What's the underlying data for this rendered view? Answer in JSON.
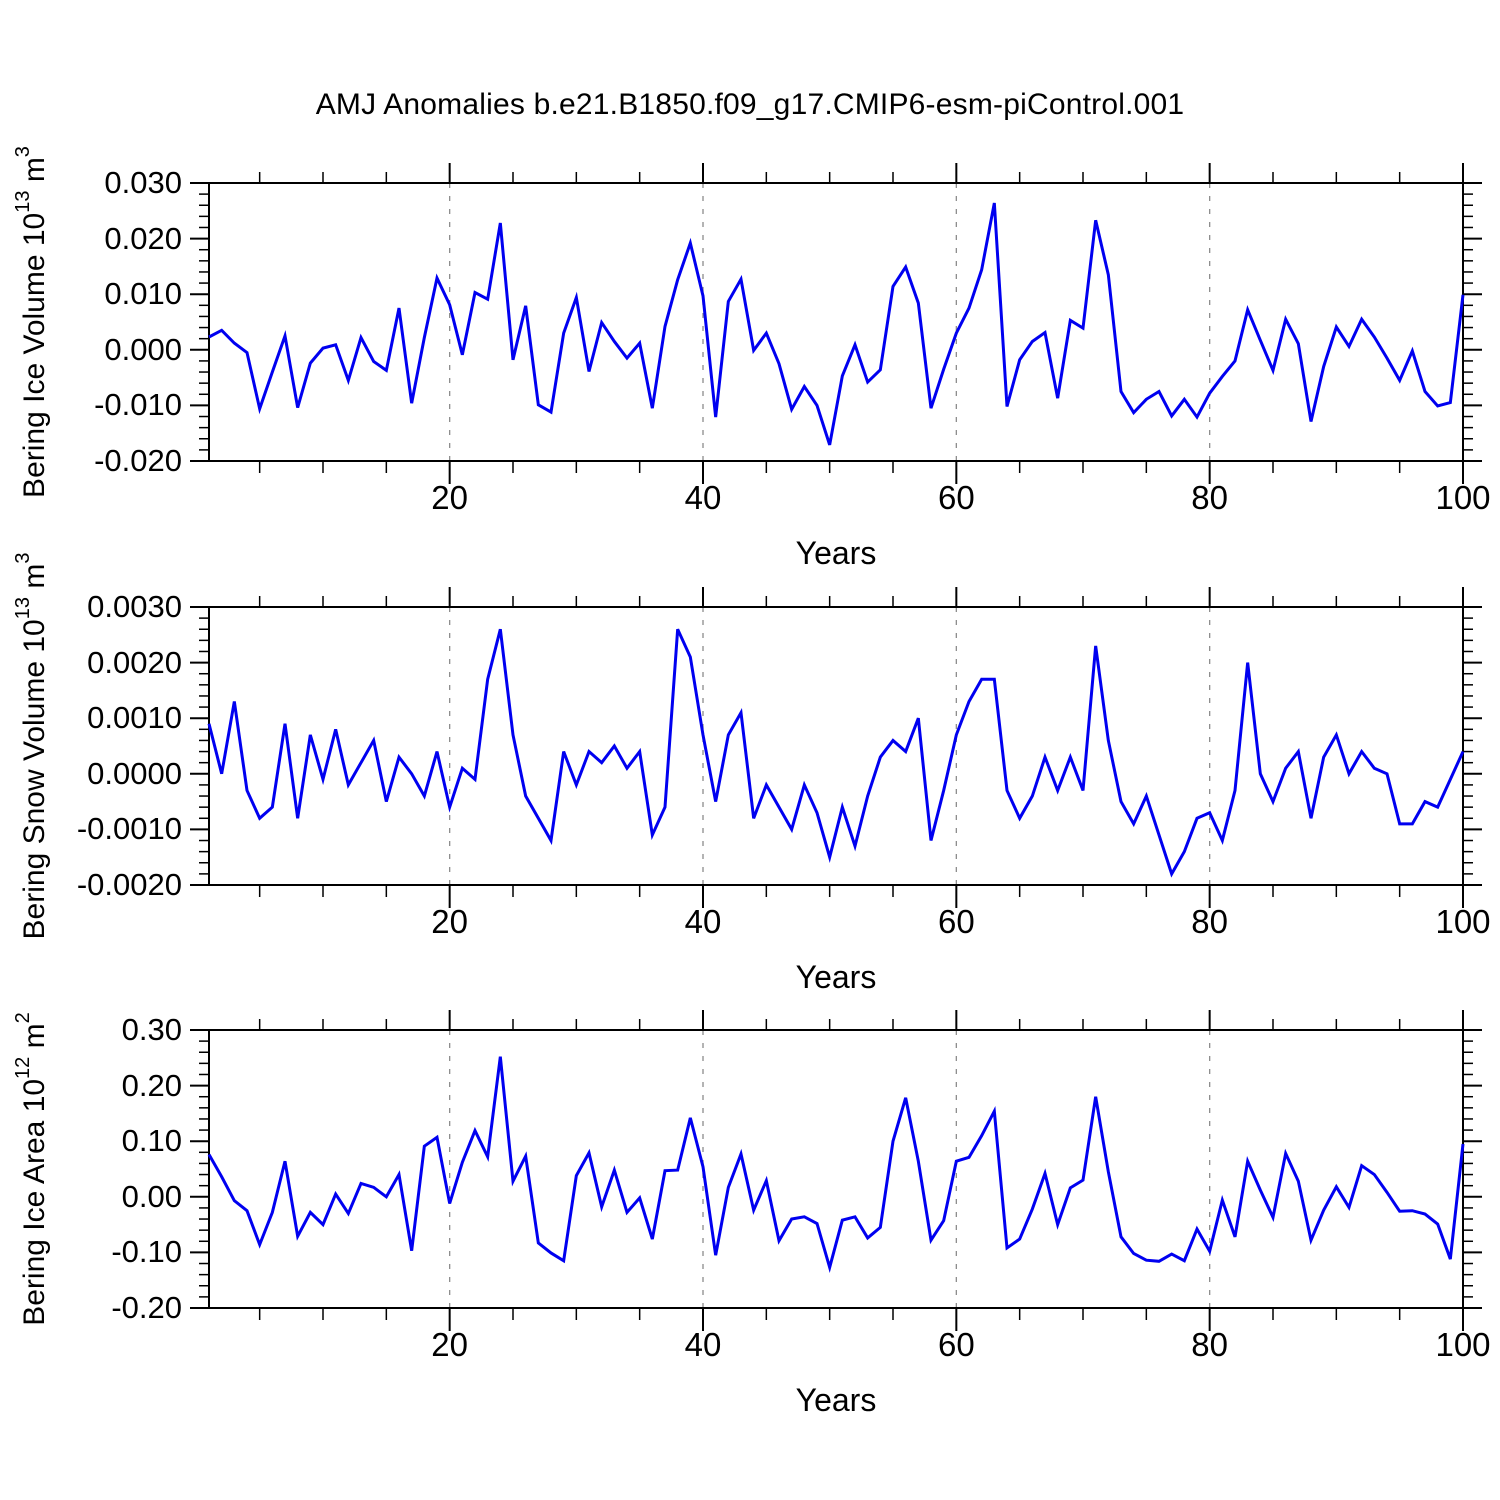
{
  "title": "AMJ Anomalies b.e21.B1850.f09_g17.CMIP6-esm-piControl.001",
  "colors": {
    "line": "#0000f0",
    "axis": "#000000",
    "grid": "#8c8c8c",
    "background": "#ffffff",
    "text": "#000000"
  },
  "x_axis": {
    "label": "Years",
    "range": [
      1,
      100
    ],
    "major_ticks": [
      20,
      40,
      60,
      80,
      100
    ],
    "major_tick_labels": [
      "20",
      "40",
      "60",
      "80",
      "100"
    ],
    "minor_tick_step": 5,
    "gridlines_at": [
      20,
      40,
      60,
      80
    ],
    "grid_style": "dashed"
  },
  "chart_data": [
    {
      "type": "line",
      "name": "bering-ice-volume",
      "ylabel_plain": "Bering Ice Volume 10^13 m^3",
      "ylabel_segments": [
        {
          "text": "Bering Ice Volume 10"
        },
        {
          "text": "13",
          "sup": true
        },
        {
          "text": " m"
        },
        {
          "text": "3",
          "sup": true
        }
      ],
      "xlabel": "Years",
      "ylim": [
        -0.02,
        0.03
      ],
      "ytick_labels": [
        "0.030",
        "0.020",
        "0.010",
        "0.000",
        "-0.010",
        "-0.020"
      ],
      "ytick_values": [
        0.03,
        0.02,
        0.01,
        0.0,
        -0.01,
        -0.02
      ],
      "yminor_step": 0.002,
      "x_years": {
        "start": 1,
        "end": 100,
        "step": 1
      },
      "values": [
        0.0023,
        0.0035,
        0.0012,
        -0.0005,
        -0.0106,
        -0.004,
        0.0025,
        -0.0104,
        -0.0024,
        0.0003,
        0.0009,
        -0.0055,
        0.0022,
        -0.0021,
        -0.0037,
        0.0075,
        -0.0096,
        0.0022,
        0.0129,
        0.0081,
        -0.0009,
        0.0103,
        0.0091,
        0.0228,
        -0.0018,
        0.0079,
        -0.0099,
        -0.0112,
        0.003,
        0.0094,
        -0.0039,
        0.0049,
        0.0015,
        -0.0015,
        0.0012,
        -0.0105,
        0.0042,
        0.0126,
        0.0192,
        0.0097,
        -0.0121,
        0.0087,
        0.0127,
        -0.0001,
        0.003,
        -0.0025,
        -0.0107,
        -0.0066,
        -0.01,
        -0.0171,
        -0.0047,
        0.0009,
        -0.0058,
        -0.0036,
        0.0114,
        0.0149,
        0.0084,
        -0.0105,
        -0.0035,
        0.003,
        0.0075,
        0.0144,
        0.0264,
        -0.0102,
        -0.0018,
        0.0015,
        0.0031,
        -0.0087,
        0.0053,
        0.0039,
        0.0233,
        0.0135,
        -0.0075,
        -0.0113,
        -0.0089,
        -0.0075,
        -0.0119,
        -0.0089,
        -0.0121,
        -0.0078,
        -0.0048,
        -0.002,
        0.0072,
        0.0017,
        -0.0037,
        0.0055,
        0.0011,
        -0.0129,
        -0.003,
        0.0041,
        0.0006,
        0.0055,
        0.0023,
        -0.0015,
        -0.0055,
        -0.0002,
        -0.0075,
        -0.0101,
        -0.0095,
        0.0099
      ]
    },
    {
      "type": "line",
      "name": "bering-snow-volume",
      "ylabel_plain": "Bering Snow Volume 10^13 m^3",
      "ylabel_segments": [
        {
          "text": "Bering Snow Volume 10"
        },
        {
          "text": "13",
          "sup": true
        },
        {
          "text": " m"
        },
        {
          "text": "3",
          "sup": true
        }
      ],
      "xlabel": "Years",
      "ylim": [
        -0.002,
        0.003
      ],
      "ytick_labels": [
        "0.0030",
        "0.0020",
        "0.0010",
        "0.0000",
        "-0.0010",
        "-0.0020"
      ],
      "ytick_values": [
        0.003,
        0.002,
        0.001,
        0.0,
        -0.001,
        -0.002
      ],
      "yminor_step": 0.0002,
      "x_years": {
        "start": 1,
        "end": 100,
        "step": 1
      },
      "values": [
        0.0009,
        0.0,
        0.0013,
        -0.0003,
        -0.0008,
        -0.0006,
        0.0009,
        -0.0008,
        0.0007,
        -0.0001,
        0.0008,
        -0.0002,
        0.0002,
        0.0006,
        -0.0005,
        0.0003,
        0.0,
        -0.0004,
        0.0004,
        -0.0006,
        0.0001,
        -0.0001,
        0.0017,
        0.0026,
        0.0007,
        -0.0004,
        -0.0008,
        -0.0012,
        0.0004,
        -0.0002,
        0.0004,
        0.0002,
        0.0005,
        0.0001,
        0.0004,
        -0.0011,
        -0.0006,
        0.0026,
        0.0021,
        0.0007,
        -0.0005,
        0.0007,
        0.0011,
        -0.0008,
        -0.0002,
        -0.0006,
        -0.001,
        -0.0002,
        -0.0007,
        -0.0015,
        -0.0006,
        -0.0013,
        -0.0004,
        0.0003,
        0.0006,
        0.0004,
        0.001,
        -0.0012,
        -0.0003,
        0.0007,
        0.0013,
        0.0017,
        0.0017,
        -0.0003,
        -0.0008,
        -0.0004,
        0.0003,
        -0.0003,
        0.0003,
        -0.0003,
        0.0023,
        0.0006,
        -0.0005,
        -0.0009,
        -0.0004,
        -0.0011,
        -0.0018,
        -0.0014,
        -0.0008,
        -0.0007,
        -0.0012,
        -0.0003,
        0.002,
        0.0,
        -0.0005,
        0.0001,
        0.0004,
        -0.0008,
        0.0003,
        0.0007,
        0.0,
        0.0004,
        0.0001,
        0.0,
        -0.0009,
        -0.0009,
        -0.0005,
        -0.0006,
        -0.0001,
        0.0004
      ]
    },
    {
      "type": "line",
      "name": "bering-ice-area",
      "ylabel_plain": "Bering Ice Area 10^12 m^2",
      "ylabel_segments": [
        {
          "text": "Bering Ice Area 10"
        },
        {
          "text": "12",
          "sup": true
        },
        {
          "text": " m"
        },
        {
          "text": "2",
          "sup": true
        }
      ],
      "xlabel": "Years",
      "ylim": [
        -0.2,
        0.3
      ],
      "ytick_labels": [
        "0.30",
        "0.20",
        "0.10",
        "0.00",
        "-0.10",
        "-0.20"
      ],
      "ytick_values": [
        0.3,
        0.2,
        0.1,
        0.0,
        -0.1,
        -0.2
      ],
      "yminor_step": 0.02,
      "x_years": {
        "start": 1,
        "end": 100,
        "step": 1
      },
      "values": [
        0.076,
        0.036,
        -0.007,
        -0.025,
        -0.086,
        -0.028,
        0.064,
        -0.071,
        -0.028,
        -0.05,
        0.005,
        -0.03,
        0.024,
        0.017,
        0.0,
        0.04,
        -0.097,
        0.091,
        0.107,
        -0.012,
        0.062,
        0.119,
        0.072,
        0.252,
        0.028,
        0.073,
        -0.083,
        -0.101,
        -0.115,
        0.038,
        0.079,
        -0.018,
        0.048,
        -0.028,
        -0.002,
        -0.076,
        0.047,
        0.048,
        0.142,
        0.054,
        -0.105,
        0.017,
        0.077,
        -0.024,
        0.029,
        -0.079,
        -0.04,
        -0.036,
        -0.048,
        -0.127,
        -0.042,
        -0.036,
        -0.074,
        -0.055,
        0.1,
        0.178,
        0.064,
        -0.078,
        -0.043,
        0.064,
        0.071,
        0.11,
        0.154,
        -0.092,
        -0.076,
        -0.022,
        0.042,
        -0.05,
        0.016,
        0.03,
        0.18,
        0.045,
        -0.072,
        -0.102,
        -0.114,
        -0.116,
        -0.103,
        -0.115,
        -0.058,
        -0.098,
        -0.006,
        -0.072,
        0.064,
        0.012,
        -0.037,
        0.078,
        0.028,
        -0.078,
        -0.024,
        0.018,
        -0.019,
        0.056,
        0.04,
        0.008,
        -0.026,
        -0.025,
        -0.031,
        -0.049,
        -0.112,
        0.095
      ]
    }
  ]
}
